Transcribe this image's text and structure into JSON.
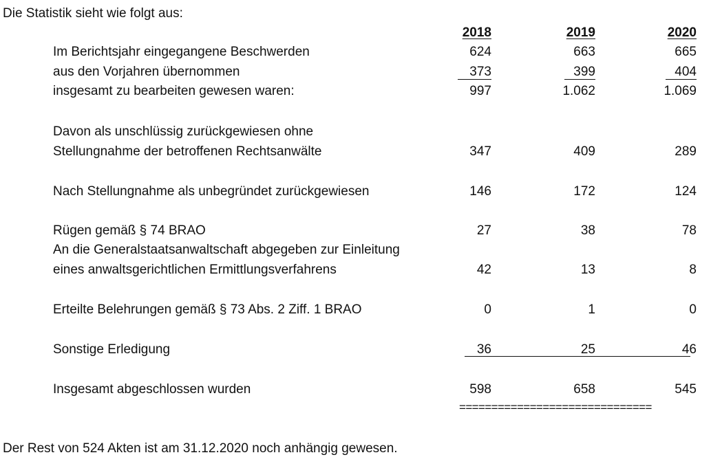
{
  "intro": "Die Statistik sieht wie folgt aus:",
  "years": [
    "2018",
    "2019",
    "2020"
  ],
  "rows": [
    {
      "label": "Im Berichtsjahr eingegangene Beschwerden",
      "values": [
        "624",
        "663",
        "665"
      ]
    },
    {
      "label": "aus den Vorjahren übernommen",
      "values": [
        "373",
        "399",
        "404"
      ],
      "underlined": true
    },
    {
      "label": "insgesamt zu bearbeiten gewesen waren:",
      "values": [
        "997",
        "1.062",
        "1.069"
      ]
    },
    {
      "label": "Davon als unschlüssig zurückgewiesen ohne",
      "values": []
    },
    {
      "label": "Stellungnahme der betroffenen Rechtsanwälte",
      "values": [
        "347",
        "409",
        "289"
      ]
    },
    {
      "label": "Nach Stellungnahme als unbegründet zurückgewiesen",
      "values": [
        "146",
        "172",
        "124"
      ]
    },
    {
      "label": "Rügen gemäß § 74 BRAO",
      "values": [
        "27",
        "38",
        "78"
      ]
    },
    {
      "label": "An die Generalstaatsanwaltschaft abgegeben zur Einleitung",
      "values": []
    },
    {
      "label": "eines anwaltsgerichtlichen Ermittlungsverfahrens",
      "values": [
        "42",
        "13",
        "8"
      ]
    },
    {
      "label": "Erteilte Belehrungen gemäß § 73 Abs. 2 Ziff. 1 BRAO",
      "values": [
        "0",
        "1",
        "0"
      ]
    },
    {
      "label": "Sonstige Erledigung",
      "values": [
        "36",
        "25",
        "46"
      ]
    },
    {
      "label": "Insgesamt abgeschlossen wurden",
      "values": [
        "598",
        "658",
        "545"
      ]
    }
  ],
  "double_line": "==============================",
  "footer": "Der Rest von 524 Akten ist am 31.12.2020 noch anhängig gewesen."
}
